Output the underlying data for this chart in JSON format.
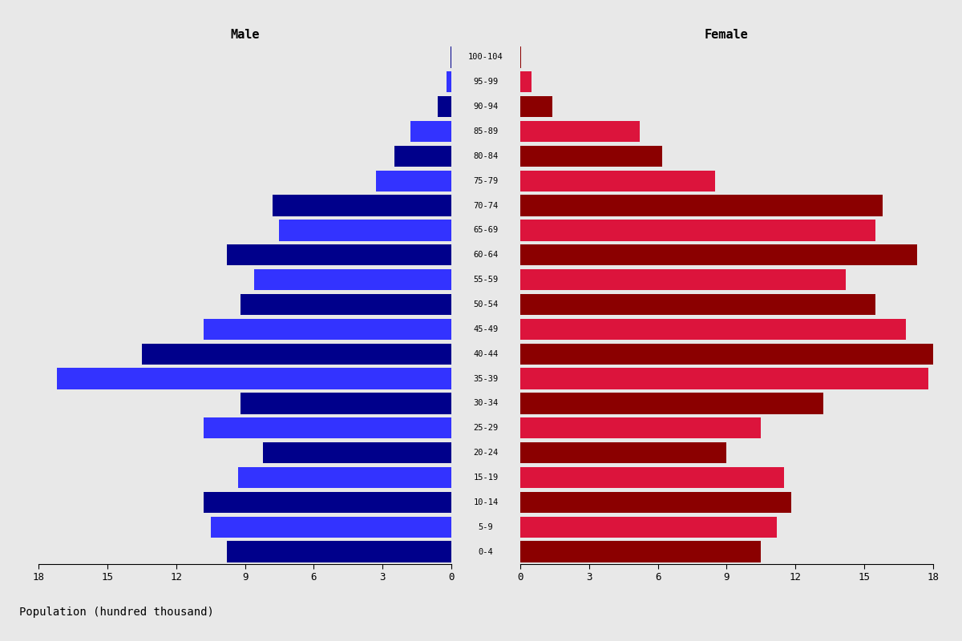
{
  "age_groups": [
    "100-104",
    "95-99",
    "90-94",
    "85-89",
    "80-84",
    "75-79",
    "70-74",
    "65-69",
    "60-64",
    "55-59",
    "50-54",
    "45-49",
    "40-44",
    "35-39",
    "30-34",
    "25-29",
    "20-24",
    "15-19",
    "10-14",
    "5-9",
    "0-4"
  ],
  "male": [
    0.05,
    0.2,
    0.6,
    1.8,
    2.5,
    3.3,
    7.8,
    7.5,
    9.8,
    8.6,
    9.2,
    10.8,
    13.5,
    17.2,
    9.2,
    10.8,
    8.2,
    9.3,
    10.8,
    10.5,
    9.8
  ],
  "female": [
    0.05,
    0.5,
    1.4,
    5.2,
    6.2,
    8.5,
    15.8,
    15.5,
    17.3,
    14.2,
    15.5,
    16.8,
    18.0,
    17.8,
    13.2,
    10.5,
    9.0,
    11.5,
    11.8,
    11.2,
    10.5
  ],
  "male_dark": "#00008B",
  "male_light": "#3333FF",
  "female_dark": "#8B0000",
  "female_light": "#DC143C",
  "xlim": 18,
  "xlabel": "Population (hundred thousand)",
  "title_male": "Male",
  "title_female": "Female",
  "background_color": "#E8E8E8",
  "xticks": [
    0,
    3,
    6,
    9,
    12,
    15,
    18
  ]
}
